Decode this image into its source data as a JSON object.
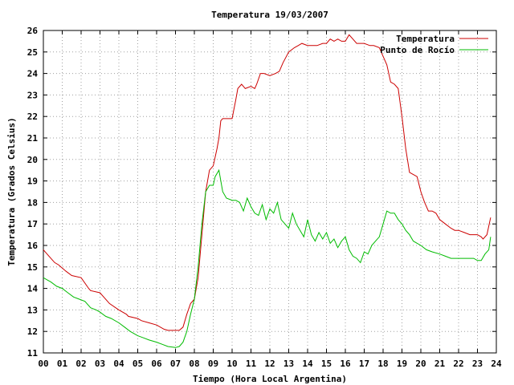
{
  "colors": {
    "temperature": "#cc0000",
    "dew_point": "#00bb00"
  },
  "chart_data": {
    "type": "line",
    "title": "Temperatura 19/03/2007",
    "xlabel": "Tiempo (Hora Local Argentina)",
    "ylabel": "Temperatura (Grados Celsius)",
    "xlim": [
      0,
      24
    ],
    "ylim": [
      11,
      26
    ],
    "x_ticks": [
      "00",
      "01",
      "02",
      "03",
      "04",
      "05",
      "06",
      "07",
      "08",
      "09",
      "10",
      "11",
      "12",
      "13",
      "14",
      "15",
      "16",
      "17",
      "18",
      "19",
      "20",
      "21",
      "22",
      "23",
      "24"
    ],
    "y_ticks": [
      "11",
      "12",
      "13",
      "14",
      "15",
      "16",
      "17",
      "18",
      "19",
      "20",
      "21",
      "22",
      "23",
      "24",
      "25",
      "26"
    ],
    "grid": true,
    "legend_position": "top-right",
    "series": [
      {
        "name": "Temperatura",
        "color": "#cc0000",
        "x": [
          0.0,
          0.3,
          0.6,
          0.8,
          1.2,
          1.5,
          2.0,
          2.4,
          2.5,
          3.0,
          3.4,
          3.5,
          4.0,
          4.4,
          4.5,
          5.0,
          5.2,
          5.6,
          6.0,
          6.4,
          6.6,
          7.0,
          7.2,
          7.4,
          7.6,
          7.8,
          8.0,
          8.2,
          8.4,
          8.6,
          8.8,
          9.0,
          9.2,
          9.3,
          9.4,
          9.5,
          9.7,
          10.0,
          10.2,
          10.3,
          10.5,
          10.7,
          11.0,
          11.2,
          11.3,
          11.5,
          11.7,
          12.0,
          12.3,
          12.5,
          12.7,
          13.0,
          13.3,
          13.5,
          13.7,
          14.0,
          14.3,
          14.5,
          14.8,
          15.0,
          15.2,
          15.4,
          15.6,
          15.8,
          16.0,
          16.2,
          16.4,
          16.6,
          16.8,
          17.0,
          17.3,
          17.5,
          17.8,
          18.0,
          18.2,
          18.4,
          18.6,
          18.8,
          19.0,
          19.2,
          19.4,
          19.6,
          19.8,
          20.0,
          20.2,
          20.4,
          20.6,
          20.8,
          21.0,
          21.3,
          21.6,
          21.8,
          22.0,
          22.3,
          22.6,
          22.8,
          23.0,
          23.2,
          23.3,
          23.5,
          23.6,
          23.7
        ],
        "values": [
          15.8,
          15.5,
          15.2,
          15.1,
          14.8,
          14.6,
          14.5,
          14.0,
          13.9,
          13.8,
          13.4,
          13.3,
          13.0,
          12.8,
          12.7,
          12.6,
          12.5,
          12.4,
          12.3,
          12.1,
          12.05,
          12.05,
          12.05,
          12.2,
          12.8,
          13.3,
          13.5,
          14.5,
          16.5,
          18.5,
          19.5,
          19.7,
          20.5,
          21.0,
          21.8,
          21.9,
          21.9,
          21.9,
          22.8,
          23.3,
          23.5,
          23.3,
          23.4,
          23.3,
          23.5,
          24.0,
          24.0,
          23.9,
          24.0,
          24.1,
          24.5,
          25.0,
          25.2,
          25.3,
          25.4,
          25.3,
          25.3,
          25.3,
          25.4,
          25.4,
          25.6,
          25.5,
          25.6,
          25.5,
          25.5,
          25.8,
          25.6,
          25.4,
          25.4,
          25.4,
          25.3,
          25.3,
          25.2,
          24.8,
          24.4,
          23.6,
          23.5,
          23.3,
          22.0,
          20.5,
          19.4,
          19.3,
          19.2,
          18.5,
          18.0,
          17.6,
          17.6,
          17.5,
          17.2,
          17.0,
          16.8,
          16.7,
          16.7,
          16.6,
          16.5,
          16.5,
          16.5,
          16.4,
          16.3,
          16.5,
          16.9,
          17.3
        ]
      },
      {
        "name": "Punto de Rocío",
        "color": "#00bb00",
        "x": [
          0.0,
          0.2,
          0.4,
          0.7,
          1.0,
          1.3,
          1.6,
          1.9,
          2.2,
          2.5,
          2.8,
          3.0,
          3.3,
          3.6,
          4.0,
          4.3,
          4.6,
          5.0,
          5.3,
          5.6,
          6.0,
          6.3,
          6.6,
          7.0,
          7.2,
          7.4,
          7.6,
          7.8,
          8.0,
          8.2,
          8.4,
          8.6,
          8.8,
          9.0,
          9.1,
          9.3,
          9.5,
          9.7,
          10.0,
          10.2,
          10.4,
          10.6,
          10.8,
          11.0,
          11.2,
          11.4,
          11.6,
          11.8,
          12.0,
          12.2,
          12.4,
          12.6,
          12.8,
          13.0,
          13.2,
          13.4,
          13.6,
          13.8,
          14.0,
          14.2,
          14.4,
          14.6,
          14.8,
          15.0,
          15.2,
          15.4,
          15.6,
          15.8,
          16.0,
          16.2,
          16.4,
          16.6,
          16.8,
          17.0,
          17.2,
          17.4,
          17.6,
          17.8,
          18.0,
          18.2,
          18.4,
          18.6,
          18.8,
          19.0,
          19.2,
          19.4,
          19.6,
          19.8,
          20.0,
          20.3,
          20.6,
          21.0,
          21.3,
          21.6,
          22.0,
          22.4,
          22.8,
          23.0,
          23.2,
          23.4,
          23.6,
          23.7
        ],
        "values": [
          14.5,
          14.4,
          14.3,
          14.1,
          14.0,
          13.8,
          13.6,
          13.5,
          13.4,
          13.1,
          13.0,
          12.9,
          12.7,
          12.6,
          12.4,
          12.2,
          12.0,
          11.8,
          11.7,
          11.6,
          11.5,
          11.4,
          11.3,
          11.25,
          11.3,
          11.5,
          12.0,
          12.8,
          13.5,
          15.0,
          17.0,
          18.5,
          18.8,
          18.8,
          19.2,
          19.5,
          18.5,
          18.2,
          18.1,
          18.1,
          18.0,
          17.6,
          18.2,
          17.8,
          17.5,
          17.4,
          17.9,
          17.2,
          17.7,
          17.5,
          18.0,
          17.2,
          17.0,
          16.8,
          17.5,
          17.0,
          16.7,
          16.4,
          17.2,
          16.5,
          16.2,
          16.6,
          16.3,
          16.6,
          16.1,
          16.3,
          15.9,
          16.2,
          16.4,
          15.8,
          15.5,
          15.4,
          15.2,
          15.7,
          15.6,
          16.0,
          16.2,
          16.4,
          17.0,
          17.6,
          17.5,
          17.5,
          17.2,
          17.0,
          16.7,
          16.5,
          16.2,
          16.1,
          16.0,
          15.8,
          15.7,
          15.6,
          15.5,
          15.4,
          15.4,
          15.4,
          15.4,
          15.3,
          15.3,
          15.6,
          15.8,
          16.4
        ]
      }
    ]
  }
}
